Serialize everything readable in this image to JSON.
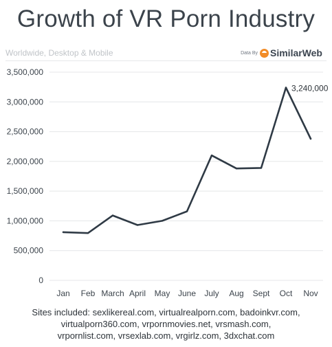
{
  "header": {
    "title": "Growth of VR Porn Industry",
    "subtitle": "Worldwide, Desktop & Mobile",
    "data_by_prefix": "Data By",
    "brand_name": "SimilarWeb",
    "brand_icon": "similarweb-logo-icon",
    "brand_color": "#f28c28"
  },
  "chart_data": {
    "type": "line",
    "categories": [
      "Jan",
      "Feb",
      "March",
      "April",
      "May",
      "June",
      "July",
      "Aug",
      "Sept",
      "Oct",
      "Nov"
    ],
    "series": [
      {
        "values": [
          810000,
          795000,
          1090000,
          930000,
          1000000,
          1160000,
          2100000,
          1880000,
          1890000,
          3240000,
          2380000
        ]
      }
    ],
    "y_ticks": [
      0,
      500000,
      1000000,
      1500000,
      2000000,
      2500000,
      3000000,
      3500000
    ],
    "y_tick_labels": [
      "0",
      "500,000",
      "1,000,000",
      "1,500,000",
      "2,000,000",
      "2,500,000",
      "3,000,000",
      "3,500,000"
    ],
    "ylim": [
      0,
      3500000
    ],
    "annotations": [
      {
        "category": "Oct",
        "label": "3,240,000"
      }
    ],
    "line_color": "#2f3a45",
    "grid": true,
    "grid_color": "#e4e6e8",
    "legend": "none"
  },
  "footer": {
    "line1": "Sites included: sexlikereal.com, virtualrealporn.com, badoinkvr.com,",
    "line2": "virtualporn360.com, vrpornmovies.net, vrsmash.com,",
    "line3": "vrpornlist.com, vrsexlab.com, vrgirlz.com, 3dxchat.com"
  }
}
